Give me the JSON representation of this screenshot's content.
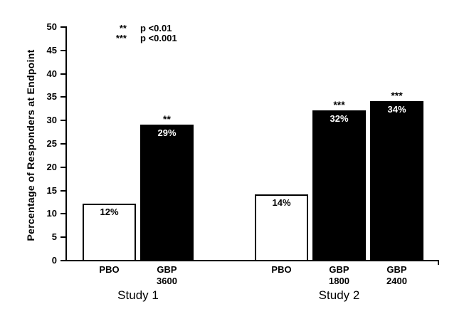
{
  "chart_data": {
    "type": "bar",
    "title": "",
    "ylabel": "Percentage of Responders at Endpoint",
    "xlabel": "",
    "ylim": [
      0,
      50
    ],
    "yticks": [
      0,
      5,
      10,
      15,
      20,
      25,
      30,
      35,
      40,
      45,
      50
    ],
    "grid": false,
    "legend_position": "top-left-inside",
    "legend": [
      {
        "symbol": "**",
        "text": "p <0.01"
      },
      {
        "symbol": "***",
        "text": "p <0.001"
      }
    ],
    "groups": [
      {
        "label": "Study 1",
        "bars": [
          {
            "category": "PBO",
            "dose": "",
            "value": 12,
            "value_label": "12%",
            "fill": "white",
            "significance": ""
          },
          {
            "category": "GBP",
            "dose": "3600",
            "value": 29,
            "value_label": "29%",
            "fill": "black",
            "significance": "**"
          }
        ]
      },
      {
        "label": "Study 2",
        "bars": [
          {
            "category": "PBO",
            "dose": "",
            "value": 14,
            "value_label": "14%",
            "fill": "white",
            "significance": ""
          },
          {
            "category": "GBP",
            "dose": "1800",
            "value": 32,
            "value_label": "32%",
            "fill": "black",
            "significance": "***"
          },
          {
            "category": "GBP",
            "dose": "2400",
            "value": 34,
            "value_label": "34%",
            "fill": "black",
            "significance": "***"
          }
        ]
      }
    ],
    "colors": {
      "bar_filled": "#000000",
      "bar_open_fill": "#ffffff",
      "bar_open_border": "#000000",
      "axis": "#000000",
      "text": "#000000",
      "value_label_on_black": "#ffffff",
      "value_label_on_white": "#000000",
      "background": "#ffffff"
    }
  }
}
